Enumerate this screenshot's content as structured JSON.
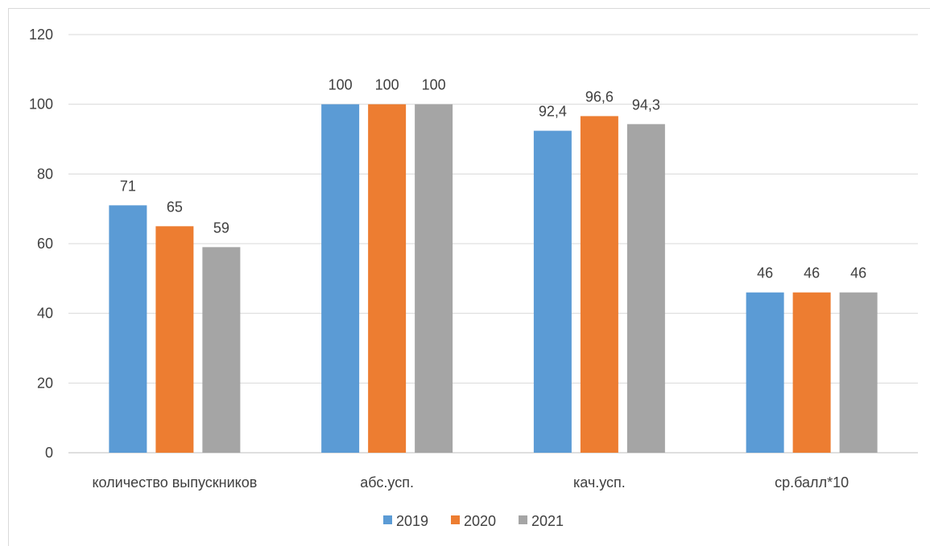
{
  "chart_data": {
    "type": "bar",
    "categories": [
      "количество выпускников",
      "абс.усп.",
      "кач.усп.",
      "ср.балл*10"
    ],
    "series": [
      {
        "name": "2019",
        "values": [
          71,
          100,
          92.4,
          46
        ],
        "labels": [
          "71",
          "100",
          "92,4",
          "46"
        ],
        "color": "#5b9bd5"
      },
      {
        "name": "2020",
        "values": [
          65,
          100,
          96.6,
          46
        ],
        "labels": [
          "65",
          "100",
          "96,6",
          "46"
        ],
        "color": "#ed7d31"
      },
      {
        "name": "2021",
        "values": [
          59,
          100,
          94.3,
          46
        ],
        "labels": [
          "59",
          "100",
          "94,3",
          "46"
        ],
        "color": "#a5a5a5"
      }
    ],
    "yticks": [
      "0",
      "20",
      "40",
      "60",
      "80",
      "100",
      "120"
    ],
    "ylim": [
      0,
      120
    ],
    "grid": true,
    "legend": "bottom",
    "title": "",
    "xlabel": "",
    "ylabel": ""
  }
}
